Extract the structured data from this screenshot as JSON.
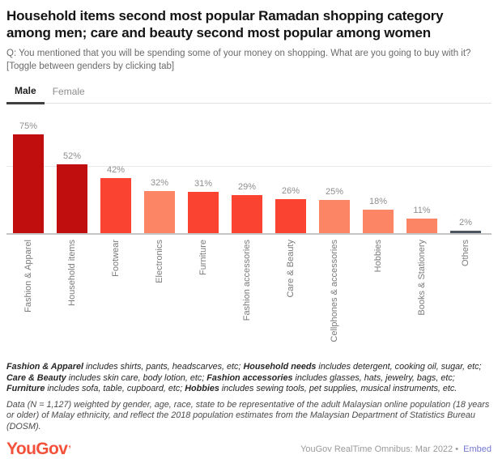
{
  "header": {
    "title": "Household items second most popular Ramadan shopping category among men; care and beauty second most popular among women",
    "question": "Q: You mentioned that you will be spending some of your money on shopping. What are you going to buy with it?\n[Toggle between genders by clicking tab]"
  },
  "tabs": [
    {
      "label": "Male",
      "active": true
    },
    {
      "label": "Female",
      "active": false
    }
  ],
  "chart_data": {
    "type": "bar",
    "title": "Ramadan shopping categories among men",
    "categories": [
      "Fashion & Apparel",
      "Household items",
      "Footwear",
      "Electronics",
      "Furniture",
      "Fashion accessories",
      "Care & Beauty",
      "Cellphones & accessories",
      "Hobbies",
      "Books & Stationery",
      "Others"
    ],
    "values": [
      75,
      52,
      42,
      32,
      31,
      29,
      26,
      25,
      18,
      11,
      2
    ],
    "unit": "%",
    "colors": [
      "#c00d0d",
      "#c00d0d",
      "#fb4332",
      "#fc8566",
      "#fb4332",
      "#fb4332",
      "#fb4332",
      "#fc8566",
      "#fc8566",
      "#fc8566",
      "#4d5560"
    ],
    "ylim": [
      0,
      85
    ],
    "gridlines": [
      50
    ],
    "value_labels": "above-bars",
    "category_label_rotation": -90,
    "legend_position": "none"
  },
  "footnote": {
    "segments": [
      {
        "text": "Fashion & Apparel",
        "bold": true
      },
      {
        "text": " includes shirts, pants, headscarves, etc; ",
        "bold": false
      },
      {
        "text": "Household needs",
        "bold": true
      },
      {
        "text": " includes detergent, cooking oil, sugar, etc; ",
        "bold": false
      },
      {
        "text": "Care & Beauty",
        "bold": true
      },
      {
        "text": " includes skin care, body lotion, etc; ",
        "bold": false
      },
      {
        "text": "Fashion accessories",
        "bold": true
      },
      {
        "text": " includes glasses, hats, jewelry, bags, etc; ",
        "bold": false
      },
      {
        "text": "Furniture",
        "bold": true
      },
      {
        "text": " includes sofa, table, cupboard, etc; ",
        "bold": false
      },
      {
        "text": "Hobbies",
        "bold": true
      },
      {
        "text": " includes sewing tools, pet supplies, musical instruments, etc.",
        "bold": false
      }
    ]
  },
  "data_note": "Data (N = 1,127) weighted by gender, age, race, state to be representative of the adult Malaysian online population (18 years or older) of Malay ethnicity, and reflect the 2018 population estimates from the Malaysian Department of Statistics Bureau (DOSM).",
  "footer": {
    "logo_text": "YouGov",
    "logo_mark": "’",
    "logo_color": "#f4513b",
    "source_text": "YouGov RealTime Omnibus: Mar 2022 •",
    "embed_label": "Embed",
    "embed_color": "#7478d2"
  }
}
